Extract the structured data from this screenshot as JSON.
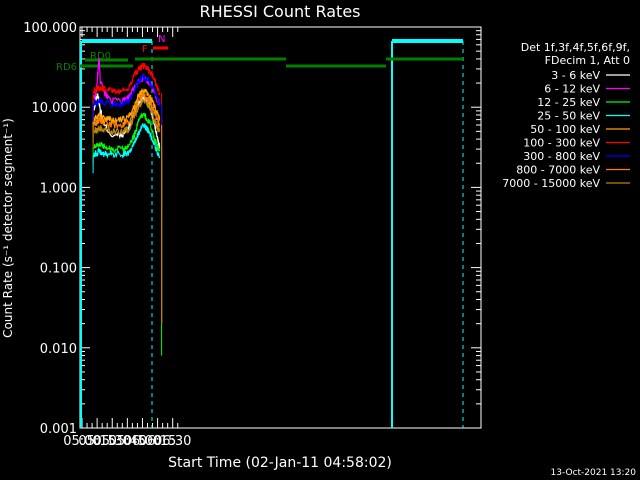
{
  "chart_data": {
    "type": "line",
    "title": "RHESSI Count Rates",
    "xlabel": "Start Time (02-Jan-11 04:58:02)",
    "ylabel": "Count Rate (s⁻¹ detector segment⁻¹)",
    "yscale": "log",
    "xlim_minutes": [
      298,
      696
    ],
    "ylim": [
      0.001,
      100
    ],
    "x_ticks": [
      "05:00",
      "05:15",
      "05:30",
      "05:45",
      "06:00",
      "06:15",
      "06:30"
    ],
    "x_tick_minutes": [
      300,
      315,
      330,
      345,
      360,
      375,
      390
    ],
    "y_ticks": [
      "100.000",
      "10.000",
      "1.000",
      "0.100",
      "0.010",
      "0.001"
    ],
    "y_tick_values": [
      100,
      10,
      1,
      0.1,
      0.01,
      0.001
    ],
    "legend_header": [
      "Det 1f,3f,4f,5f,6f,9f,",
      "FDecim 1, Att 0"
    ],
    "series": [
      {
        "name": "3 - 6 keV",
        "color": "#ffffff",
        "x": [
          312,
          314,
          316,
          318,
          322,
          330,
          340,
          346,
          352,
          356,
          360,
          364,
          368,
          372,
          375,
          377
        ],
        "y": [
          9,
          13,
          14,
          9.5,
          6,
          4.4,
          4.5,
          5.4,
          8.5,
          11.5,
          13,
          12.5,
          9.5,
          6,
          4,
          3.2
        ]
      },
      {
        "name": "6 - 12 keV",
        "color": "#ff00ff",
        "x": [
          312,
          314,
          316,
          317,
          318,
          322,
          330,
          340,
          346,
          352,
          356,
          360,
          364,
          368,
          372,
          375,
          377
        ],
        "y": [
          13,
          15,
          30,
          40,
          22,
          15,
          12,
          12,
          13,
          17,
          21,
          23,
          22,
          19,
          15,
          12,
          11
        ]
      },
      {
        "name": "12 - 25 keV",
        "color": "#00ff00",
        "x": [
          312,
          314,
          318,
          322,
          330,
          340,
          346,
          352,
          356,
          360,
          364,
          368,
          372,
          375,
          377
        ],
        "y": [
          3.2,
          3.4,
          3.5,
          3.2,
          3.0,
          3.0,
          3.2,
          4.5,
          6.5,
          8,
          7.5,
          6,
          4,
          3.2,
          2.8
        ]
      },
      {
        "name": "25 - 50 keV",
        "color": "#00ffff",
        "x": [
          312,
          314,
          318,
          322,
          330,
          340,
          346,
          352,
          356,
          360,
          364,
          368,
          372,
          375,
          377
        ],
        "y": [
          2.5,
          2.7,
          2.8,
          2.6,
          2.6,
          2.6,
          2.7,
          3.5,
          4.8,
          5.8,
          5.5,
          4.5,
          3.3,
          2.7,
          2.4
        ]
      },
      {
        "name": "50 - 100 keV",
        "color": "#ffa500",
        "x": [
          312,
          314,
          318,
          322,
          330,
          340,
          346,
          352,
          356,
          360,
          364,
          368,
          372,
          375,
          377
        ],
        "y": [
          7,
          7.5,
          7.8,
          7.2,
          7,
          7,
          7.4,
          10,
          14,
          16,
          15.5,
          13,
          10,
          8,
          7
        ]
      },
      {
        "name": "100 - 300 keV",
        "color": "#ff0000",
        "x": [
          312,
          314,
          318,
          322,
          330,
          340,
          346,
          352,
          356,
          360,
          364,
          368,
          372,
          375,
          377
        ],
        "y": [
          16,
          17,
          18,
          17,
          16,
          16,
          17,
          25,
          30,
          33,
          32,
          28,
          22,
          17,
          15
        ]
      },
      {
        "name": "300 - 800 keV",
        "color": "#0000ff",
        "x": [
          312,
          314,
          318,
          322,
          330,
          340,
          346,
          352,
          356,
          360,
          364,
          368,
          372,
          375,
          377
        ],
        "y": [
          11,
          11.5,
          12,
          11.5,
          11,
          11,
          11.8,
          16,
          21,
          24,
          23,
          20,
          16,
          12.5,
          11
        ]
      },
      {
        "name": "800 - 7000 keV",
        "color": "#ff7f00",
        "x": [
          312,
          314,
          318,
          322,
          330,
          340,
          346,
          352,
          356,
          360,
          364,
          368,
          372,
          375,
          377
        ],
        "y": [
          6,
          6.4,
          6.8,
          6.3,
          6,
          6,
          6.4,
          9,
          12,
          14,
          13.5,
          11.5,
          8.5,
          6.8,
          6
        ]
      },
      {
        "name": "7000 - 15000 keV",
        "color": "#b8860b",
        "x": [
          312,
          314,
          318,
          322,
          330,
          340,
          346,
          352,
          356,
          360,
          364,
          368,
          372,
          375,
          377
        ],
        "y": [
          5,
          5.3,
          5.5,
          5.2,
          5,
          5,
          5.3,
          7.5,
          10,
          12,
          11.5,
          9.5,
          7,
          5.5,
          5
        ]
      }
    ],
    "annotations": [
      "RD0",
      "RD6",
      "F",
      "N"
    ],
    "footer": "13-Oct-2021 13:20"
  }
}
